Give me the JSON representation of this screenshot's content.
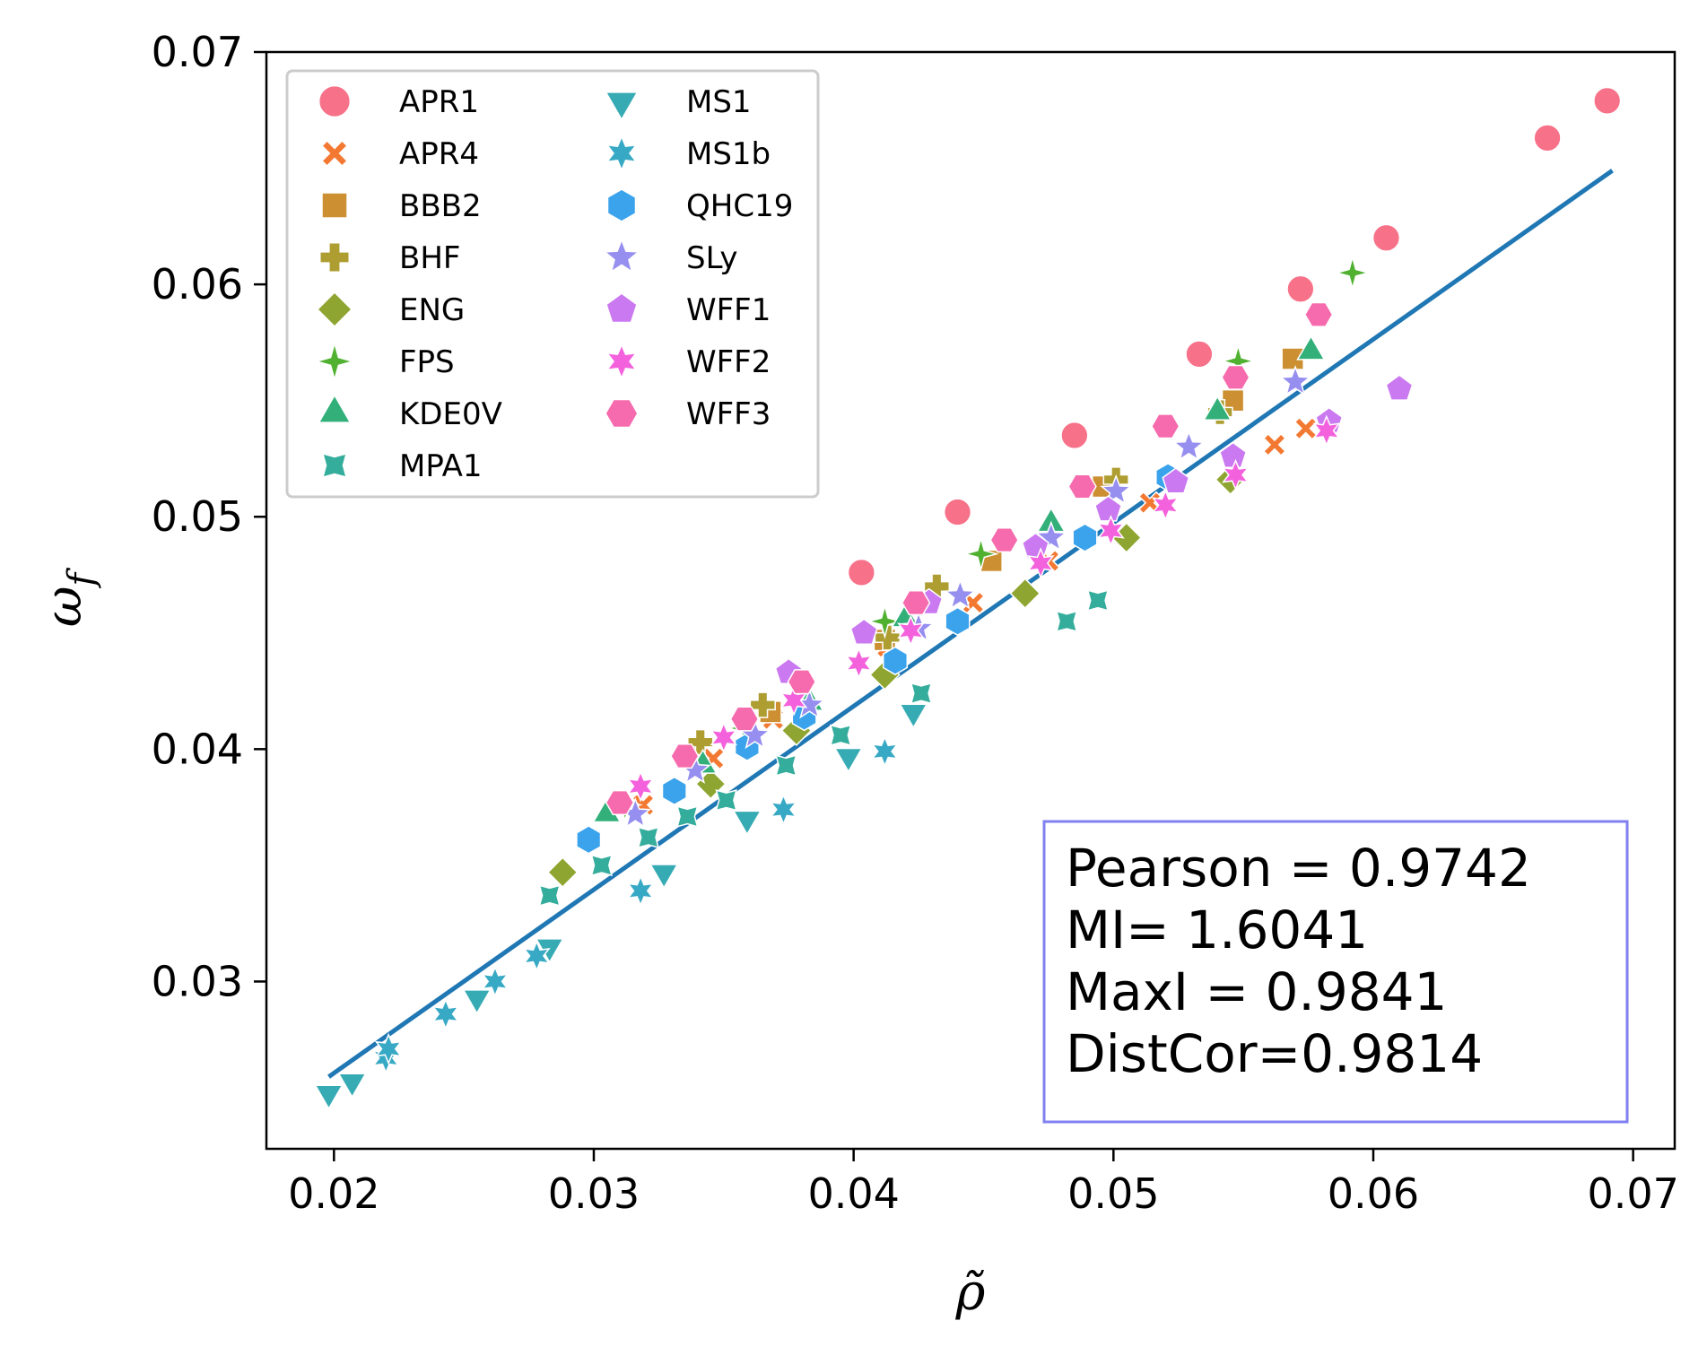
{
  "chart_data": {
    "type": "scatter",
    "title": "",
    "xlabel": "ρ̃",
    "ylabel_main": "ω",
    "ylabel_sub": "f",
    "xlim": [
      0.0174,
      0.0716
    ],
    "ylim": [
      0.0228,
      0.07
    ],
    "xticks": [
      0.02,
      0.03,
      0.04,
      0.05,
      0.06,
      0.07
    ],
    "yticks": [
      0.03,
      0.04,
      0.05,
      0.06,
      0.07
    ],
    "xtick_labels": [
      "0.02",
      "0.03",
      "0.04",
      "0.05",
      "0.06",
      "0.07"
    ],
    "ytick_labels": [
      "0.03",
      "0.04",
      "0.05",
      "0.06",
      "0.07"
    ],
    "legend_position": "top-left",
    "series": [
      {
        "name": "APR1",
        "color": "#f77189",
        "marker": "circle",
        "points": [
          [
            0.0403,
            0.0476
          ],
          [
            0.044,
            0.0502
          ],
          [
            0.0485,
            0.0535
          ],
          [
            0.0533,
            0.057
          ],
          [
            0.0572,
            0.0598
          ],
          [
            0.0605,
            0.062
          ],
          [
            0.0667,
            0.0663
          ],
          [
            0.069,
            0.0679
          ]
        ]
      },
      {
        "name": "APR4",
        "color": "#f37932",
        "marker": "x",
        "points": [
          [
            0.0319,
            0.0376
          ],
          [
            0.0346,
            0.0396
          ],
          [
            0.0369,
            0.0413
          ],
          [
            0.0413,
            0.0444
          ],
          [
            0.0446,
            0.0463
          ],
          [
            0.0475,
            0.0481
          ],
          [
            0.0514,
            0.0506
          ],
          [
            0.0562,
            0.0531
          ],
          [
            0.0574,
            0.0538
          ]
        ]
      },
      {
        "name": "BBB2",
        "color": "#cc8f32",
        "marker": "square",
        "points": [
          [
            0.0337,
            0.0397
          ],
          [
            0.0368,
            0.0416
          ],
          [
            0.0412,
            0.0447
          ],
          [
            0.0453,
            0.0481
          ],
          [
            0.0496,
            0.0513
          ],
          [
            0.0546,
            0.055
          ],
          [
            0.0569,
            0.0568
          ]
        ]
      },
      {
        "name": "BHF",
        "color": "#ae9d31",
        "marker": "plus",
        "points": [
          [
            0.0341,
            0.0403
          ],
          [
            0.0365,
            0.0419
          ],
          [
            0.0413,
            0.0448
          ],
          [
            0.0432,
            0.047
          ],
          [
            0.0501,
            0.0516
          ],
          [
            0.0541,
            0.0545
          ]
        ]
      },
      {
        "name": "ENG",
        "color": "#8ea631",
        "marker": "diamond",
        "points": [
          [
            0.0288,
            0.0347
          ],
          [
            0.0345,
            0.0385
          ],
          [
            0.0378,
            0.0408
          ],
          [
            0.0412,
            0.0432
          ],
          [
            0.0466,
            0.0467
          ],
          [
            0.0505,
            0.0491
          ],
          [
            0.0545,
            0.0516
          ]
        ]
      },
      {
        "name": "FPS",
        "color": "#50b131",
        "marker": "star4",
        "points": [
          [
            0.0312,
            0.0376
          ],
          [
            0.0358,
            0.0409
          ],
          [
            0.0412,
            0.0455
          ],
          [
            0.0449,
            0.0484
          ],
          [
            0.0548,
            0.0567
          ],
          [
            0.0592,
            0.0605
          ]
        ]
      },
      {
        "name": "KDE0V",
        "color": "#33b07a",
        "marker": "triangle-up",
        "points": [
          [
            0.0305,
            0.0372
          ],
          [
            0.0342,
            0.0393
          ],
          [
            0.0383,
            0.042
          ],
          [
            0.042,
            0.0456
          ],
          [
            0.0476,
            0.0497
          ],
          [
            0.054,
            0.0545
          ],
          [
            0.0576,
            0.0571
          ]
        ]
      },
      {
        "name": "MPA1",
        "color": "#35ad9c",
        "marker": "star4-bowtie",
        "points": [
          [
            0.0283,
            0.0337
          ],
          [
            0.0303,
            0.035
          ],
          [
            0.0321,
            0.0362
          ],
          [
            0.0336,
            0.0371
          ],
          [
            0.0351,
            0.0378
          ],
          [
            0.0374,
            0.0393
          ],
          [
            0.0395,
            0.0406
          ],
          [
            0.0426,
            0.0424
          ],
          [
            0.0482,
            0.0455
          ],
          [
            0.0494,
            0.0464
          ]
        ]
      },
      {
        "name": "MS1",
        "color": "#37abb4",
        "marker": "triangle-down",
        "points": [
          [
            0.0198,
            0.0252
          ],
          [
            0.0207,
            0.0257
          ],
          [
            0.0255,
            0.0293
          ],
          [
            0.0283,
            0.0315
          ],
          [
            0.0327,
            0.0347
          ],
          [
            0.0359,
            0.037
          ],
          [
            0.0398,
            0.0397
          ],
          [
            0.0423,
            0.0416
          ]
        ]
      },
      {
        "name": "MS1b",
        "color": "#38a9c5",
        "marker": "star6",
        "points": [
          [
            0.022,
            0.0267
          ],
          [
            0.0221,
            0.0271
          ],
          [
            0.0243,
            0.0286
          ],
          [
            0.0262,
            0.03
          ],
          [
            0.0278,
            0.0311
          ],
          [
            0.0318,
            0.0339
          ],
          [
            0.0373,
            0.0374
          ],
          [
            0.0412,
            0.0399
          ]
        ]
      },
      {
        "name": "QHC19",
        "color": "#3ba3ec",
        "marker": "hexagon",
        "points": [
          [
            0.0298,
            0.0361
          ],
          [
            0.0331,
            0.0382
          ],
          [
            0.0359,
            0.0401
          ],
          [
            0.0381,
            0.0414
          ],
          [
            0.0416,
            0.0438
          ],
          [
            0.044,
            0.0455
          ],
          [
            0.0489,
            0.0491
          ],
          [
            0.0521,
            0.0517
          ]
        ]
      },
      {
        "name": "SLy",
        "color": "#968ff0",
        "marker": "star5",
        "points": [
          [
            0.0316,
            0.0372
          ],
          [
            0.0339,
            0.0391
          ],
          [
            0.0362,
            0.0406
          ],
          [
            0.0383,
            0.0419
          ],
          [
            0.0425,
            0.0452
          ],
          [
            0.0441,
            0.0466
          ],
          [
            0.0476,
            0.0491
          ],
          [
            0.0501,
            0.0511
          ],
          [
            0.0529,
            0.053
          ],
          [
            0.057,
            0.0558
          ]
        ]
      },
      {
        "name": "WFF1",
        "color": "#ca79f0",
        "marker": "pentagon",
        "points": [
          [
            0.0375,
            0.0433
          ],
          [
            0.0404,
            0.045
          ],
          [
            0.0429,
            0.0463
          ],
          [
            0.047,
            0.0487
          ],
          [
            0.0498,
            0.0503
          ],
          [
            0.0524,
            0.0515
          ],
          [
            0.0546,
            0.0526
          ],
          [
            0.0583,
            0.0541
          ],
          [
            0.061,
            0.0555
          ]
        ]
      },
      {
        "name": "WFF2",
        "color": "#f461dd",
        "marker": "star6",
        "points": [
          [
            0.0318,
            0.0384
          ],
          [
            0.035,
            0.0405
          ],
          [
            0.0377,
            0.0421
          ],
          [
            0.0402,
            0.0437
          ],
          [
            0.0422,
            0.0451
          ],
          [
            0.0472,
            0.048
          ],
          [
            0.0499,
            0.0494
          ],
          [
            0.052,
            0.0505
          ],
          [
            0.0547,
            0.0518
          ],
          [
            0.0582,
            0.0537
          ]
        ]
      },
      {
        "name": "WFF3",
        "color": "#f66bad",
        "marker": "hexagon2",
        "points": [
          [
            0.031,
            0.0377
          ],
          [
            0.0335,
            0.0397
          ],
          [
            0.0358,
            0.0413
          ],
          [
            0.038,
            0.0429
          ],
          [
            0.0424,
            0.0463
          ],
          [
            0.0458,
            0.049
          ],
          [
            0.0488,
            0.0513
          ],
          [
            0.052,
            0.0539
          ],
          [
            0.0547,
            0.056
          ],
          [
            0.0579,
            0.0587
          ]
        ]
      }
    ],
    "fit_line": {
      "color": "#1f77b4",
      "x": [
        0.0198,
        0.0692
      ],
      "y": [
        0.0259,
        0.0649
      ]
    },
    "stats_box": {
      "lines": [
        "Pearson = 0.9742",
        "MI= 1.6041",
        "MaxI = 0.9841",
        "DistCor=0.9814"
      ],
      "border_color": "#8080f0"
    }
  }
}
